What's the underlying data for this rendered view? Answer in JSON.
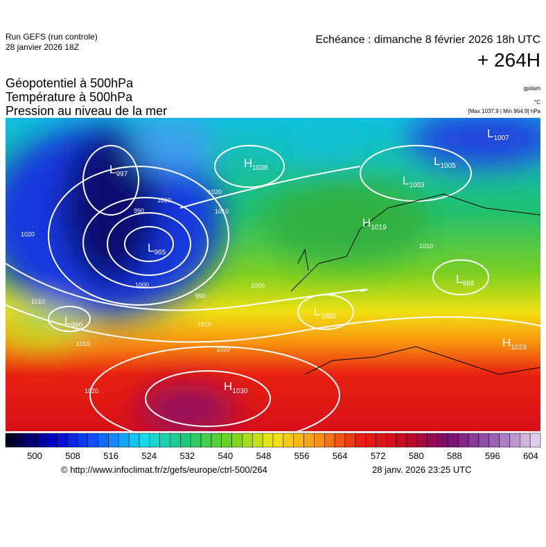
{
  "header": {
    "run": "Run GEFS (run controle)",
    "run_date": "28 janvier 2026 18Z",
    "valid": "Echéance : dimanche 8 février 2026 18h UTC",
    "lead": "+ 264H"
  },
  "titles": [
    "Géopotentiel à 500hPa",
    "Température à 500hPa",
    "Pression au niveau de la mer"
  ],
  "units": [
    "gpdam",
    "°C",
    "[Max 1037.9 | Min 964.9] hPa"
  ],
  "centers": [
    {
      "letter": "H",
      "value": "1038"
    },
    {
      "letter": "L",
      "value": "997"
    },
    {
      "letter": "L",
      "value": "965"
    },
    {
      "letter": "L",
      "value": "990"
    },
    {
      "letter": "H",
      "value": "1030"
    },
    {
      "letter": "L",
      "value": "1002"
    },
    {
      "letter": "H",
      "value": "1019"
    },
    {
      "letter": "L",
      "value": "1007"
    },
    {
      "letter": "L",
      "value": "1005"
    },
    {
      "letter": "L",
      "value": "1003"
    },
    {
      "letter": "L",
      "value": "998"
    },
    {
      "letter": "H",
      "value": "1023"
    }
  ],
  "isobar_labels": [
    "990",
    "1000",
    "1010",
    "1020",
    "1000",
    "990",
    "1010",
    "1020",
    "1010",
    "1020",
    "1010",
    "1020",
    "1000",
    "1010"
  ],
  "colorbar": {
    "ticks": [
      500,
      508,
      516,
      524,
      532,
      540,
      548,
      556,
      564,
      572,
      580,
      588,
      596,
      604
    ]
  },
  "footer": {
    "url": "© http://www.infoclimat.fr/z/gefs/europe/ctrl-500/264",
    "generated": "28 janv. 2026 23:25 UTC"
  }
}
